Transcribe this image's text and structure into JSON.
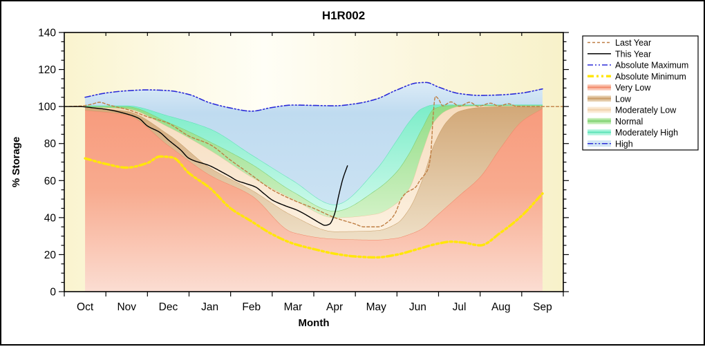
{
  "title": "H1R002",
  "axes": {
    "x_label": "Month",
    "y_label": "% Storage",
    "y_range": [
      0,
      140
    ],
    "y_major": 20,
    "y_minor": 5,
    "y_tick_labels": [
      "0",
      "20",
      "40",
      "60",
      "80",
      "100",
      "120",
      "140"
    ],
    "months": [
      "Oct",
      "Nov",
      "Dec",
      "Jan",
      "Feb",
      "Mar",
      "Apr",
      "May",
      "Jun",
      "Jul",
      "Aug",
      "Sep"
    ]
  },
  "legend": {
    "items": [
      {
        "label": "Last Year",
        "type": "line",
        "key": "last_year"
      },
      {
        "label": "This Year",
        "type": "line",
        "key": "this_year"
      },
      {
        "label": "Absolute Maximum",
        "type": "line",
        "key": "absolute_maximum"
      },
      {
        "label": "Absolute Minimum",
        "type": "line",
        "key": "absolute_minimum"
      },
      {
        "label": "Very Low",
        "type": "band",
        "key": "very_low"
      },
      {
        "label": "Low",
        "type": "band",
        "key": "low"
      },
      {
        "label": "Moderately Low",
        "type": "band",
        "key": "moderately_low"
      },
      {
        "label": "Normal",
        "type": "band",
        "key": "normal"
      },
      {
        "label": "Moderately High",
        "type": "band",
        "key": "moderately_high"
      },
      {
        "label": "High",
        "type": "band",
        "key": "high",
        "line_overlay": "absolute_maximum"
      }
    ]
  },
  "colors": {
    "frame": "#000000",
    "plot_bg_stops": [
      [
        0,
        "#FAF4CF"
      ],
      [
        0.4,
        "#FFFEF6"
      ],
      [
        0.72,
        "#FBF6DC"
      ],
      [
        1,
        "#F8F2CA"
      ]
    ],
    "bands": {
      "very_low": {
        "stops": [
          [
            0,
            "#F79B7D"
          ],
          [
            0.45,
            "#F8AB8F"
          ],
          [
            1,
            "#FBDDD2"
          ]
        ],
        "edge": "#F08465"
      },
      "low": {
        "stops": [
          [
            0,
            "#D2A878"
          ],
          [
            1,
            "#EEDFC6"
          ]
        ],
        "edge": "#C69A62"
      },
      "moderately_low": {
        "stops": [
          [
            0,
            "#F6DCBE"
          ],
          [
            1,
            "#FCF0DF"
          ]
        ],
        "edge": "#ECC9A0"
      },
      "normal": {
        "stops": [
          [
            0,
            "#92DC85"
          ],
          [
            1,
            "#D2F2C6"
          ]
        ],
        "edge": "#76CB66"
      },
      "moderately_high": {
        "stops": [
          [
            0,
            "#7BEDC8"
          ],
          [
            1,
            "#CDF9EB"
          ]
        ],
        "edge": "#55E0B2"
      },
      "high": {
        "stops": [
          [
            0,
            "#DCEBF7"
          ],
          [
            0.25,
            "#BFDBF0"
          ],
          [
            1,
            "#CBE2F3"
          ]
        ],
        "edge": "#9FC6E4"
      }
    },
    "lines": {
      "last_year": {
        "color": "#BE7D42",
        "width": 1.4,
        "dash": "4 3"
      },
      "this_year": {
        "color": "#000000",
        "width": 1.4,
        "dash": ""
      },
      "absolute_maximum": {
        "color": "#2A2AD8",
        "width": 1.6,
        "dash": "8 3 2 3 2 3"
      },
      "absolute_minimum": {
        "color": "#FFE60A",
        "width": 3.5,
        "dash": "9 4 3 4 3 4"
      }
    }
  },
  "chart_data": {
    "type": "area",
    "description": "Percent of reservoir storage by month (water year Oct-Sep). Percentile condition bands plotted at month midpoints; x unit = months after Oct 1.",
    "x_categories": [
      "Oct",
      "Nov",
      "Dec",
      "Jan",
      "Feb",
      "Mar",
      "Apr",
      "May",
      "Jun",
      "Jul",
      "Aug",
      "Sep"
    ],
    "ylim": [
      0,
      140
    ],
    "band_x": [
      0.5,
      1.5,
      2.5,
      3.5,
      4.5,
      5.5,
      6.5,
      7.5,
      8.0,
      8.3,
      8.6,
      8.9,
      9.2,
      9.5,
      10.0,
      10.5,
      11.0,
      11.5
    ],
    "bands": [
      {
        "name": "Very Low",
        "key": "very_low",
        "top": [
          98,
          95.5,
          79,
          63,
          52,
          32,
          28.5,
          28,
          29,
          31,
          34,
          40,
          46,
          52,
          62,
          78,
          92,
          99
        ]
      },
      {
        "name": "Low",
        "key": "low",
        "top": [
          99.4,
          97.5,
          85,
          67,
          55,
          41,
          32.5,
          33,
          37,
          45,
          60,
          80,
          92,
          97.5,
          99.6,
          100,
          100,
          100
        ]
      },
      {
        "name": "Moderately Low",
        "key": "moderately_low",
        "top": [
          99.8,
          98.8,
          89,
          76.5,
          62,
          50,
          40,
          42,
          48,
          56,
          75,
          92,
          98,
          100,
          100.3,
          100.3,
          100.3,
          100.3
        ]
      },
      {
        "name": "Normal",
        "key": "normal",
        "top": [
          100.2,
          100,
          91.5,
          81,
          69,
          54,
          43.5,
          55,
          65,
          75,
          88,
          99,
          100.5,
          100.6,
          100.6,
          100.6,
          100.6,
          100.6
        ]
      },
      {
        "name": "Moderately High",
        "key": "moderately_high",
        "top": [
          100.5,
          100.5,
          95,
          88,
          74,
          60,
          47,
          66,
          82,
          92,
          99,
          101,
          101,
          101,
          101,
          101,
          101,
          101
        ]
      },
      {
        "name": "High",
        "key": "high",
        "top_ref": "absolute_maximum"
      }
    ],
    "lines": [
      {
        "name": "Absolute Maximum",
        "key": "absolute_maximum",
        "points": [
          [
            0.5,
            105
          ],
          [
            1,
            107.3
          ],
          [
            1.5,
            108.5
          ],
          [
            2,
            109
          ],
          [
            2.5,
            108.6
          ],
          [
            3,
            106.5
          ],
          [
            3.5,
            102
          ],
          [
            4,
            99.2
          ],
          [
            4.5,
            97.5
          ],
          [
            5,
            99.5
          ],
          [
            5.5,
            100.8
          ],
          [
            6,
            100.6
          ],
          [
            6.5,
            100.4
          ],
          [
            7,
            101.5
          ],
          [
            7.5,
            104
          ],
          [
            8,
            109
          ],
          [
            8.5,
            112.8
          ],
          [
            8.7,
            113
          ],
          [
            9,
            110.5
          ],
          [
            9.5,
            107
          ],
          [
            10,
            106
          ],
          [
            10.5,
            106.3
          ],
          [
            11,
            107.3
          ],
          [
            11.5,
            109.5
          ]
        ]
      },
      {
        "name": "Absolute Minimum",
        "key": "absolute_minimum",
        "points": [
          [
            0.5,
            72
          ],
          [
            1,
            69
          ],
          [
            1.5,
            67
          ],
          [
            2,
            69.5
          ],
          [
            2.3,
            73
          ],
          [
            2.6,
            72.5
          ],
          [
            3,
            64
          ],
          [
            3.5,
            56
          ],
          [
            4,
            45
          ],
          [
            4.5,
            38
          ],
          [
            5,
            31
          ],
          [
            5.5,
            26
          ],
          [
            6,
            23
          ],
          [
            6.5,
            20.5
          ],
          [
            7,
            19
          ],
          [
            7.5,
            18.5
          ],
          [
            8,
            20
          ],
          [
            8.5,
            23
          ],
          [
            9,
            26
          ],
          [
            9.3,
            27
          ],
          [
            9.6,
            26.5
          ],
          [
            10,
            25
          ],
          [
            10.5,
            32
          ],
          [
            11,
            41
          ],
          [
            11.5,
            53
          ]
        ]
      },
      {
        "name": "Last Year",
        "key": "last_year",
        "points": [
          [
            0,
            100
          ],
          [
            0.4,
            100.3
          ],
          [
            0.65,
            101.2
          ],
          [
            0.85,
            102.3
          ],
          [
            1.05,
            101
          ],
          [
            1.25,
            99.8
          ],
          [
            1.5,
            98.5
          ],
          [
            2,
            94.5
          ],
          [
            2.5,
            91
          ],
          [
            3,
            84
          ],
          [
            3.5,
            79.5
          ],
          [
            4,
            71
          ],
          [
            4.5,
            63
          ],
          [
            5,
            55
          ],
          [
            5.5,
            49.5
          ],
          [
            6,
            45
          ],
          [
            6.5,
            40
          ],
          [
            7,
            36.5
          ],
          [
            7.2,
            35
          ],
          [
            7.55,
            35
          ],
          [
            7.8,
            38
          ],
          [
            7.95,
            42
          ],
          [
            8.1,
            50
          ],
          [
            8.2,
            53
          ],
          [
            8.45,
            56.5
          ],
          [
            8.55,
            60
          ],
          [
            8.62,
            62
          ],
          [
            8.72,
            65
          ],
          [
            8.78,
            69
          ],
          [
            8.82,
            76
          ],
          [
            8.87,
            95
          ],
          [
            8.92,
            105.5
          ],
          [
            9,
            104
          ],
          [
            9.1,
            100.4
          ],
          [
            9.3,
            102.5
          ],
          [
            9.5,
            100.2
          ],
          [
            9.75,
            102.3
          ],
          [
            9.95,
            100.1
          ],
          [
            10.25,
            101.8
          ],
          [
            10.45,
            100.3
          ],
          [
            10.68,
            101.5
          ],
          [
            10.88,
            100.1
          ],
          [
            11.2,
            100
          ],
          [
            12,
            100
          ]
        ]
      },
      {
        "name": "This Year",
        "key": "this_year",
        "points": [
          [
            0,
            100
          ],
          [
            0.35,
            100
          ],
          [
            0.7,
            99.3
          ],
          [
            1,
            98.5
          ],
          [
            1.5,
            96
          ],
          [
            1.8,
            93.5
          ],
          [
            2,
            89.5
          ],
          [
            2.3,
            86
          ],
          [
            2.5,
            82
          ],
          [
            2.8,
            76.5
          ],
          [
            3,
            72
          ],
          [
            3.5,
            68
          ],
          [
            3.8,
            64.5
          ],
          [
            4,
            62
          ],
          [
            4.15,
            60
          ],
          [
            4.35,
            58.5
          ],
          [
            4.6,
            56.5
          ],
          [
            4.8,
            53
          ],
          [
            5,
            49.5
          ],
          [
            5.3,
            46.5
          ],
          [
            5.6,
            44
          ],
          [
            6,
            39
          ],
          [
            6.15,
            37
          ],
          [
            6.27,
            35.8
          ],
          [
            6.38,
            36.5
          ],
          [
            6.5,
            42
          ],
          [
            6.6,
            52
          ],
          [
            6.7,
            61
          ],
          [
            6.81,
            68
          ]
        ]
      }
    ]
  }
}
